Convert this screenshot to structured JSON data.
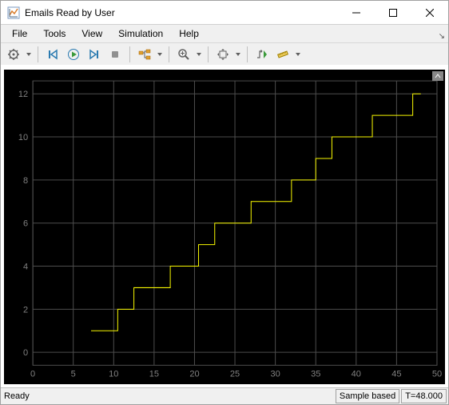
{
  "window": {
    "title": "Emails Read by User"
  },
  "menu": {
    "items": [
      "File",
      "Tools",
      "View",
      "Simulation",
      "Help"
    ]
  },
  "status": {
    "ready": "Ready",
    "mode": "Sample based",
    "time": "T=48.000"
  },
  "chart": {
    "type": "step-line",
    "background_color": "#000000",
    "grid_color": "#4d4d4d",
    "axis_label_color": "#808080",
    "axis_fontsize": 11,
    "series_color": "#f7f700",
    "line_width": 1,
    "xlim": [
      0,
      50
    ],
    "ylim": [
      -0.6,
      12.6
    ],
    "xticks": [
      0,
      5,
      10,
      15,
      20,
      25,
      30,
      35,
      40,
      45,
      50
    ],
    "yticks": [
      0,
      2,
      4,
      6,
      8,
      10,
      12
    ],
    "points": [
      [
        7.2,
        1
      ],
      [
        10.5,
        1
      ],
      [
        10.5,
        2
      ],
      [
        12.5,
        2
      ],
      [
        12.5,
        3
      ],
      [
        17,
        3
      ],
      [
        17,
        4
      ],
      [
        20.5,
        4
      ],
      [
        20.5,
        5
      ],
      [
        22.5,
        5
      ],
      [
        22.5,
        6
      ],
      [
        27,
        6
      ],
      [
        27,
        7
      ],
      [
        32,
        7
      ],
      [
        32,
        8
      ],
      [
        35,
        8
      ],
      [
        35,
        9
      ],
      [
        37,
        9
      ],
      [
        37,
        10
      ],
      [
        42,
        10
      ],
      [
        42,
        11
      ],
      [
        47,
        11
      ],
      [
        47,
        12
      ],
      [
        48,
        12
      ]
    ]
  }
}
